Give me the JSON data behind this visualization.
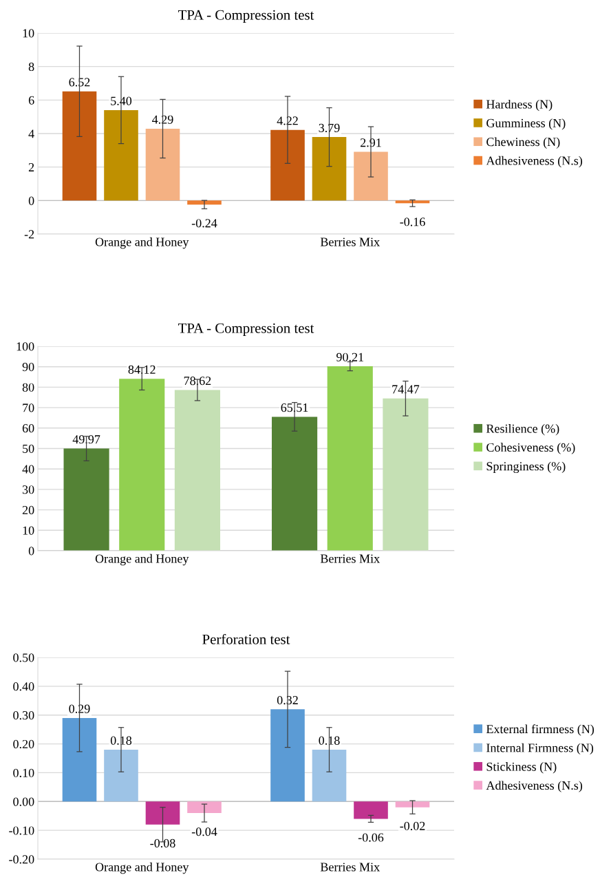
{
  "chart_data": [
    {
      "type": "bar",
      "title": "TPA - Compression test",
      "categories": [
        "Orange and Honey",
        "Berries Mix"
      ],
      "ylim": [
        -2,
        10
      ],
      "yticks": [
        -2,
        0,
        2,
        4,
        6,
        8,
        10
      ],
      "grid": "y",
      "legend": "right",
      "series": [
        {
          "name": "Hardness (N)",
          "color": "#c55a11",
          "values": [
            6.52,
            4.22
          ],
          "value_labels": [
            "6.52",
            "4.22"
          ],
          "errors": [
            2.7,
            2.0
          ]
        },
        {
          "name": "Gumminess (N)",
          "color": "#bf9000",
          "values": [
            5.4,
            3.79
          ],
          "value_labels": [
            "5.40",
            "3.79"
          ],
          "errors": [
            2.0,
            1.75
          ]
        },
        {
          "name": "Chewiness (N)",
          "color": "#f4b183",
          "values": [
            4.29,
            2.91
          ],
          "value_labels": [
            "4.29",
            "2.91"
          ],
          "errors": [
            1.75,
            1.5
          ]
        },
        {
          "name": "Adhesiveness (N.s)",
          "color": "#ed7d31",
          "values": [
            -0.24,
            -0.16
          ],
          "value_labels": [
            "-0.24",
            "-0.16"
          ],
          "errors": [
            0.25,
            0.2
          ]
        }
      ]
    },
    {
      "type": "bar",
      "title": "TPA - Compression test",
      "categories": [
        "Orange and Honey",
        "Berries Mix"
      ],
      "ylim": [
        0,
        100
      ],
      "yticks": [
        0,
        10,
        20,
        30,
        40,
        50,
        60,
        70,
        80,
        90,
        100
      ],
      "grid": "y",
      "legend": "right",
      "series": [
        {
          "name": "Resilience (%)",
          "color": "#548235",
          "values": [
            49.97,
            65.51
          ],
          "value_labels": [
            "49.97",
            "65.51"
          ],
          "errors": [
            6,
            7
          ]
        },
        {
          "name": "Cohesiveness (%)",
          "color": "#92d050",
          "values": [
            84.12,
            90.21
          ],
          "value_labels": [
            "84.12",
            "90.21"
          ],
          "errors": [
            5.5,
            2.2
          ]
        },
        {
          "name": "Springiness (%)",
          "color": "#c5e0b4",
          "values": [
            78.62,
            74.47
          ],
          "value_labels": [
            "78.62",
            "74.47"
          ],
          "errors": [
            5.2,
            8.5
          ]
        }
      ]
    },
    {
      "type": "bar",
      "title": "Perforation test",
      "categories": [
        "Orange and Honey",
        "Berries Mix"
      ],
      "ylim": [
        -0.2,
        0.5
      ],
      "yticks": [
        {
          "value": -0.2,
          "label": "-0.20"
        },
        {
          "value": -0.1,
          "label": "-0.10"
        },
        {
          "value": 0,
          "label": "0.00"
        },
        {
          "value": 0.1,
          "label": "0.10"
        },
        {
          "value": 0.2,
          "label": "0.20"
        },
        {
          "value": 0.3,
          "label": "0.30"
        },
        {
          "value": 0.4,
          "label": "0.40"
        },
        {
          "value": 0.5,
          "label": "0.50"
        }
      ],
      "grid": "y",
      "legend": "right",
      "series": [
        {
          "name": "External firmness (N)",
          "color": "#5b9bd5",
          "values": [
            0.29,
            0.32
          ],
          "value_labels": [
            "0.29",
            "0.32"
          ],
          "errors": [
            0.117,
            0.132
          ]
        },
        {
          "name": "Internal Firmness (N)",
          "color": "#9dc3e6",
          "values": [
            0.18,
            0.18
          ],
          "value_labels": [
            "0.18",
            "0.18"
          ],
          "errors": [
            0.077,
            0.077
          ]
        },
        {
          "name": "Stickiness (N)",
          "color": "#c0338f",
          "values": [
            -0.08,
            -0.06
          ],
          "value_labels": [
            "-0.08",
            "-0.06"
          ],
          "errors": [
            0.06,
            0.012
          ]
        },
        {
          "name": "Adhesiveness (N.s)",
          "color": "#f4a6cc",
          "values": [
            -0.04,
            -0.02
          ],
          "value_labels": [
            "-0.04",
            "-0.02"
          ],
          "errors": [
            0.031,
            0.023
          ]
        }
      ]
    }
  ]
}
